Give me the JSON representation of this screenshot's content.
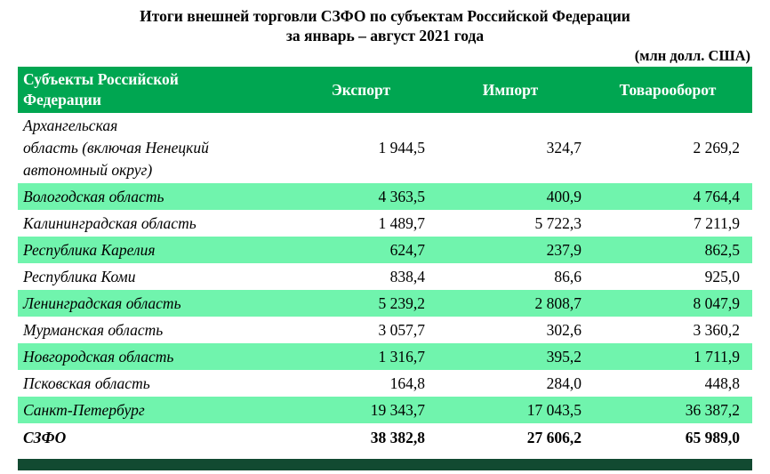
{
  "title": {
    "line1": "Итоги внешней торговли СЗФО по субъектам Российской Федерации",
    "line2": "за январь – август 2021 года",
    "unit_note": "(млн  долл. США)"
  },
  "table": {
    "header": {
      "subjects": "Субъекты  Российской\nФедерации",
      "export": "Экспорт",
      "import": "Импорт",
      "turnover": "Товарооборот"
    },
    "rows": [
      {
        "name": "Архангельская\nобласть (включая Ненецкий\nавтономный округ)",
        "export": "1 944,5",
        "import": "324,7",
        "turnover": "2 269,2",
        "highlight": false,
        "tall": true
      },
      {
        "name": "Вологодская область",
        "export": "4 363,5",
        "import": "400,9",
        "turnover": "4 764,4",
        "highlight": true,
        "tall": false
      },
      {
        "name": "Калининградская область",
        "export": "1 489,7",
        "import": "5 722,3",
        "turnover": "7 211,9",
        "highlight": false,
        "tall": false
      },
      {
        "name": "Республика Карелия",
        "export": "624,7",
        "import": "237,9",
        "turnover": "862,5",
        "highlight": true,
        "tall": false
      },
      {
        "name": "Республика Коми",
        "export": "838,4",
        "import": "86,6",
        "turnover": "925,0",
        "highlight": false,
        "tall": false
      },
      {
        "name": "Ленинградская область",
        "export": "5 239,2",
        "import": "2 808,7",
        "turnover": "8 047,9",
        "highlight": true,
        "tall": false
      },
      {
        "name": "Мурманская область",
        "export": "3 057,7",
        "import": "302,6",
        "turnover": "3 360,2",
        "highlight": false,
        "tall": false
      },
      {
        "name": "Новгородская область",
        "export": "1 316,7",
        "import": "395,2",
        "turnover": "1 711,9",
        "highlight": true,
        "tall": false
      },
      {
        "name": "Псковская область",
        "export": "164,8",
        "import": "284,0",
        "turnover": "448,8",
        "highlight": false,
        "tall": false
      },
      {
        "name": "Санкт-Петербург",
        "export": "19 343,7",
        "import": "17 043,5",
        "turnover": "36 387,2",
        "highlight": true,
        "tall": false
      }
    ],
    "total": {
      "name": "СЗФО",
      "export": "38 382,8",
      "import": "27 606,2",
      "turnover": "65 989,0"
    }
  },
  "colors": {
    "header_green": "#00A651",
    "row_highlight_green": "#70F4AD",
    "footer_bar_green": "#124A31"
  },
  "chart_data": {
    "type": "table",
    "title": "Итоги внешней торговли СЗФО по субъектам Российской Федерации за январь – август 2021 года",
    "unit": "млн долл. США",
    "columns": [
      "Субъекты Российской Федерации",
      "Экспорт",
      "Импорт",
      "Товарооборот"
    ],
    "rows": [
      {
        "name": "Архангельская область (включая Ненецкий автономный округ)",
        "export": 1944.5,
        "import": 324.7,
        "turnover": 2269.2
      },
      {
        "name": "Вологодская область",
        "export": 4363.5,
        "import": 400.9,
        "turnover": 4764.4
      },
      {
        "name": "Калининградская область",
        "export": 1489.7,
        "import": 5722.3,
        "turnover": 7211.9
      },
      {
        "name": "Республика Карелия",
        "export": 624.7,
        "import": 237.9,
        "turnover": 862.5
      },
      {
        "name": "Республика Коми",
        "export": 838.4,
        "import": 86.6,
        "turnover": 925.0
      },
      {
        "name": "Ленинградская область",
        "export": 5239.2,
        "import": 2808.7,
        "turnover": 8047.9
      },
      {
        "name": "Мурманская область",
        "export": 3057.7,
        "import": 302.6,
        "turnover": 3360.2
      },
      {
        "name": "Новгородская область",
        "export": 1316.7,
        "import": 395.2,
        "turnover": 1711.9
      },
      {
        "name": "Псковская область",
        "export": 164.8,
        "import": 284.0,
        "turnover": 448.8
      },
      {
        "name": "Санкт-Петербург",
        "export": 19343.7,
        "import": 17043.5,
        "turnover": 36387.2
      }
    ],
    "total": {
      "name": "СЗФО",
      "export": 38382.8,
      "import": 27606.2,
      "turnover": 65989.0
    }
  }
}
